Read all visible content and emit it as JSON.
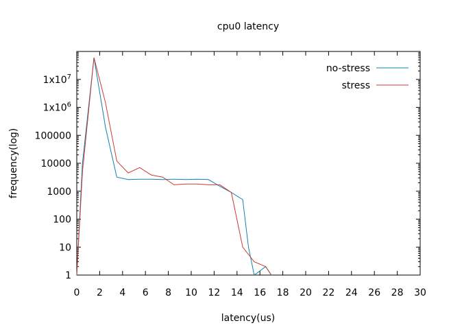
{
  "chart_data": {
    "type": "line",
    "title": "cpu0 latency",
    "xlabel": "latency(us)",
    "ylabel": "frequency(log)",
    "xlim": [
      0,
      30
    ],
    "ylim": [
      1,
      100000000
    ],
    "yscale": "log",
    "grid": false,
    "legend_position": "top-right",
    "x_ticks": [
      "0",
      "2",
      "4",
      "6",
      "8",
      "10",
      "12",
      "14",
      "16",
      "18",
      "20",
      "22",
      "24",
      "26",
      "28",
      "30"
    ],
    "y_ticks": [
      {
        "value": 1,
        "label": "1"
      },
      {
        "value": 10,
        "label": "10"
      },
      {
        "value": 100,
        "label": "100"
      },
      {
        "value": 1000,
        "label": "1000"
      },
      {
        "value": 10000,
        "label": "10000"
      },
      {
        "value": 100000,
        "label": "100000"
      },
      {
        "value": 1000000,
        "label": "1x10^6"
      },
      {
        "value": 10000000,
        "label": "1x10^7"
      }
    ],
    "series": [
      {
        "name": "no-stress",
        "color": "#0f80b0",
        "points": [
          [
            0,
            1
          ],
          [
            0.5,
            10000
          ],
          [
            1.5,
            60000000
          ],
          [
            2.5,
            200000
          ],
          [
            3.5,
            3200
          ],
          [
            4.5,
            2600
          ],
          [
            5.5,
            2700
          ],
          [
            6.5,
            2700
          ],
          [
            7.5,
            2600
          ],
          [
            8.5,
            2700
          ],
          [
            9.5,
            2600
          ],
          [
            10.5,
            2700
          ],
          [
            11.5,
            2600
          ],
          [
            12.5,
            1500
          ],
          [
            13.5,
            900
          ],
          [
            14.5,
            500
          ],
          [
            15,
            10
          ],
          [
            15.5,
            1
          ],
          [
            16.5,
            2
          ],
          [
            17,
            1
          ]
        ]
      },
      {
        "name": "stress",
        "color": "#cc3a2e",
        "points": [
          [
            0,
            1
          ],
          [
            0.5,
            5000
          ],
          [
            1.5,
            60000000
          ],
          [
            2.5,
            1500000
          ],
          [
            3.5,
            12000
          ],
          [
            4.5,
            4500
          ],
          [
            5.5,
            7000
          ],
          [
            6.5,
            3800
          ],
          [
            7.5,
            3200
          ],
          [
            8.5,
            1700
          ],
          [
            9.5,
            1800
          ],
          [
            10.5,
            1800
          ],
          [
            11.5,
            1700
          ],
          [
            12.5,
            1700
          ],
          [
            13.5,
            900
          ],
          [
            14.5,
            10
          ],
          [
            15.5,
            3
          ],
          [
            16.5,
            2
          ],
          [
            17,
            1
          ]
        ]
      }
    ]
  }
}
